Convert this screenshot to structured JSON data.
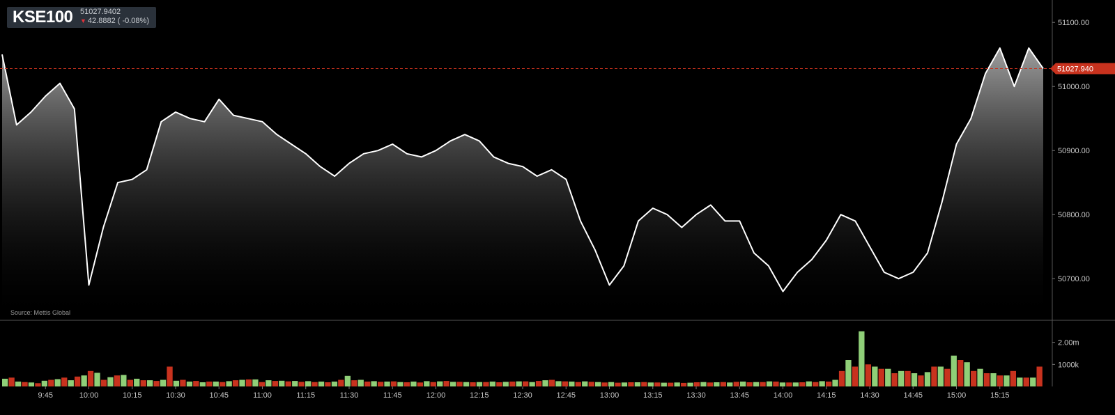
{
  "symbol": "KSE100",
  "last_price": "51027.9402",
  "change_text": "42.8882 ( -0.08%)",
  "source": "Source: Mettis Global",
  "colors": {
    "background": "#000000",
    "line": "#ffffff",
    "up": "#8fcf78",
    "down": "#c8321e",
    "price_tag": "#c8321e"
  },
  "chart_data": [
    {
      "type": "area",
      "x": [
        "9:30",
        "9:35",
        "9:40",
        "9:45",
        "9:50",
        "9:55",
        "10:00",
        "10:05",
        "10:10",
        "10:15",
        "10:20",
        "10:25",
        "10:30",
        "10:35",
        "10:40",
        "10:45",
        "10:50",
        "10:55",
        "11:00",
        "11:05",
        "11:10",
        "11:15",
        "11:20",
        "11:25",
        "11:30",
        "11:35",
        "11:40",
        "11:45",
        "11:50",
        "11:55",
        "12:00",
        "12:05",
        "12:10",
        "12:15",
        "12:20",
        "12:25",
        "12:30",
        "12:35",
        "12:40",
        "12:45",
        "12:50",
        "12:55",
        "13:00",
        "13:05",
        "13:10",
        "13:15",
        "13:20",
        "13:25",
        "13:30",
        "13:35",
        "13:40",
        "13:45",
        "13:50",
        "13:55",
        "14:00",
        "14:05",
        "14:10",
        "14:15",
        "14:20",
        "14:25",
        "14:30",
        "14:35",
        "14:40",
        "14:45",
        "14:50",
        "14:55",
        "15:00",
        "15:05",
        "15:10",
        "15:15",
        "15:20",
        "15:25",
        "15:30"
      ],
      "y": [
        51050,
        50940,
        50960,
        50985,
        51005,
        50965,
        50690,
        50780,
        50850,
        50855,
        50870,
        50945,
        50960,
        50950,
        50945,
        50980,
        50955,
        50950,
        50945,
        50925,
        50910,
        50895,
        50875,
        50860,
        50880,
        50895,
        50900,
        50910,
        50895,
        50890,
        50900,
        50915,
        50925,
        50915,
        50890,
        50880,
        50875,
        50860,
        50870,
        50855,
        50790,
        50745,
        50690,
        50720,
        50790,
        50810,
        50800,
        50780,
        50800,
        50815,
        50790,
        50790,
        50740,
        50720,
        50680,
        50710,
        50730,
        50760,
        50800,
        50790,
        50750,
        50710,
        50700,
        50710,
        50740,
        50820,
        50910,
        50950,
        51020,
        51060,
        51000,
        51060,
        51028
      ],
      "yticks": [
        50700,
        50800,
        50900,
        51000,
        51100
      ],
      "ytick_labels": [
        "50700.00",
        "50800.00",
        "50900.00",
        "51000.00",
        "51100.00"
      ],
      "ylim": [
        50635,
        51135
      ],
      "reference_value": 51027.94,
      "reference_label": "51027.940",
      "grid": false
    },
    {
      "type": "bar",
      "x_labels": [
        "9:45",
        "10:00",
        "10:15",
        "10:30",
        "10:45",
        "11:00",
        "11:15",
        "11:30",
        "11:45",
        "12:00",
        "12:15",
        "12:30",
        "12:45",
        "13:00",
        "13:15",
        "13:30",
        "13:45",
        "14:00",
        "14:15",
        "14:30",
        "14:45",
        "15:00",
        "15:15"
      ],
      "ytick_labels": [
        "1000k",
        "2.00m"
      ],
      "yticks": [
        1000000,
        2000000
      ],
      "ylim": [
        0,
        3000000
      ],
      "series": [
        {
          "values": [
            350000,
            220000,
            180000,
            260000,
            330000,
            280000,
            500000,
            620000,
            420000,
            520000,
            350000,
            280000,
            300000,
            260000,
            220000,
            190000,
            220000,
            240000,
            300000,
            320000,
            280000,
            260000,
            250000,
            240000,
            220000,
            220000,
            480000,
            300000,
            240000,
            220000,
            200000,
            220000,
            240000,
            230000,
            210000,
            200000,
            200000,
            220000,
            210000,
            230000,
            200000,
            280000,
            240000,
            220000,
            230000,
            200000,
            200000,
            180000,
            190000,
            180000,
            170000,
            180000,
            170000,
            200000,
            190000,
            180000,
            220000,
            200000,
            230000,
            180000,
            180000,
            230000,
            240000,
            300000,
            1200000,
            2500000,
            900000,
            800000,
            700000,
            600000,
            650000,
            900000,
            1400000,
            1100000,
            800000,
            600000,
            500000,
            400000,
            400000
          ]
        },
        {
          "values": [
            400000,
            200000,
            150000,
            300000,
            400000,
            450000,
            700000,
            300000,
            500000,
            300000,
            280000,
            250000,
            900000,
            300000,
            250000,
            220000,
            200000,
            280000,
            320000,
            200000,
            250000,
            230000,
            210000,
            200000,
            190000,
            300000,
            280000,
            220000,
            210000,
            230000,
            190000,
            180000,
            200000,
            250000,
            210000,
            190000,
            200000,
            190000,
            220000,
            230000,
            250000,
            300000,
            230000,
            200000,
            210000,
            180000,
            170000,
            190000,
            200000,
            180000,
            170000,
            160000,
            190000,
            180000,
            200000,
            210000,
            190000,
            200000,
            220000,
            180000,
            190000,
            200000,
            220000,
            700000,
            900000,
            1000000,
            800000,
            600000,
            700000,
            500000,
            900000,
            800000,
            1200000,
            700000,
            600000,
            500000,
            700000,
            400000,
            900000
          ]
        }
      ]
    }
  ]
}
